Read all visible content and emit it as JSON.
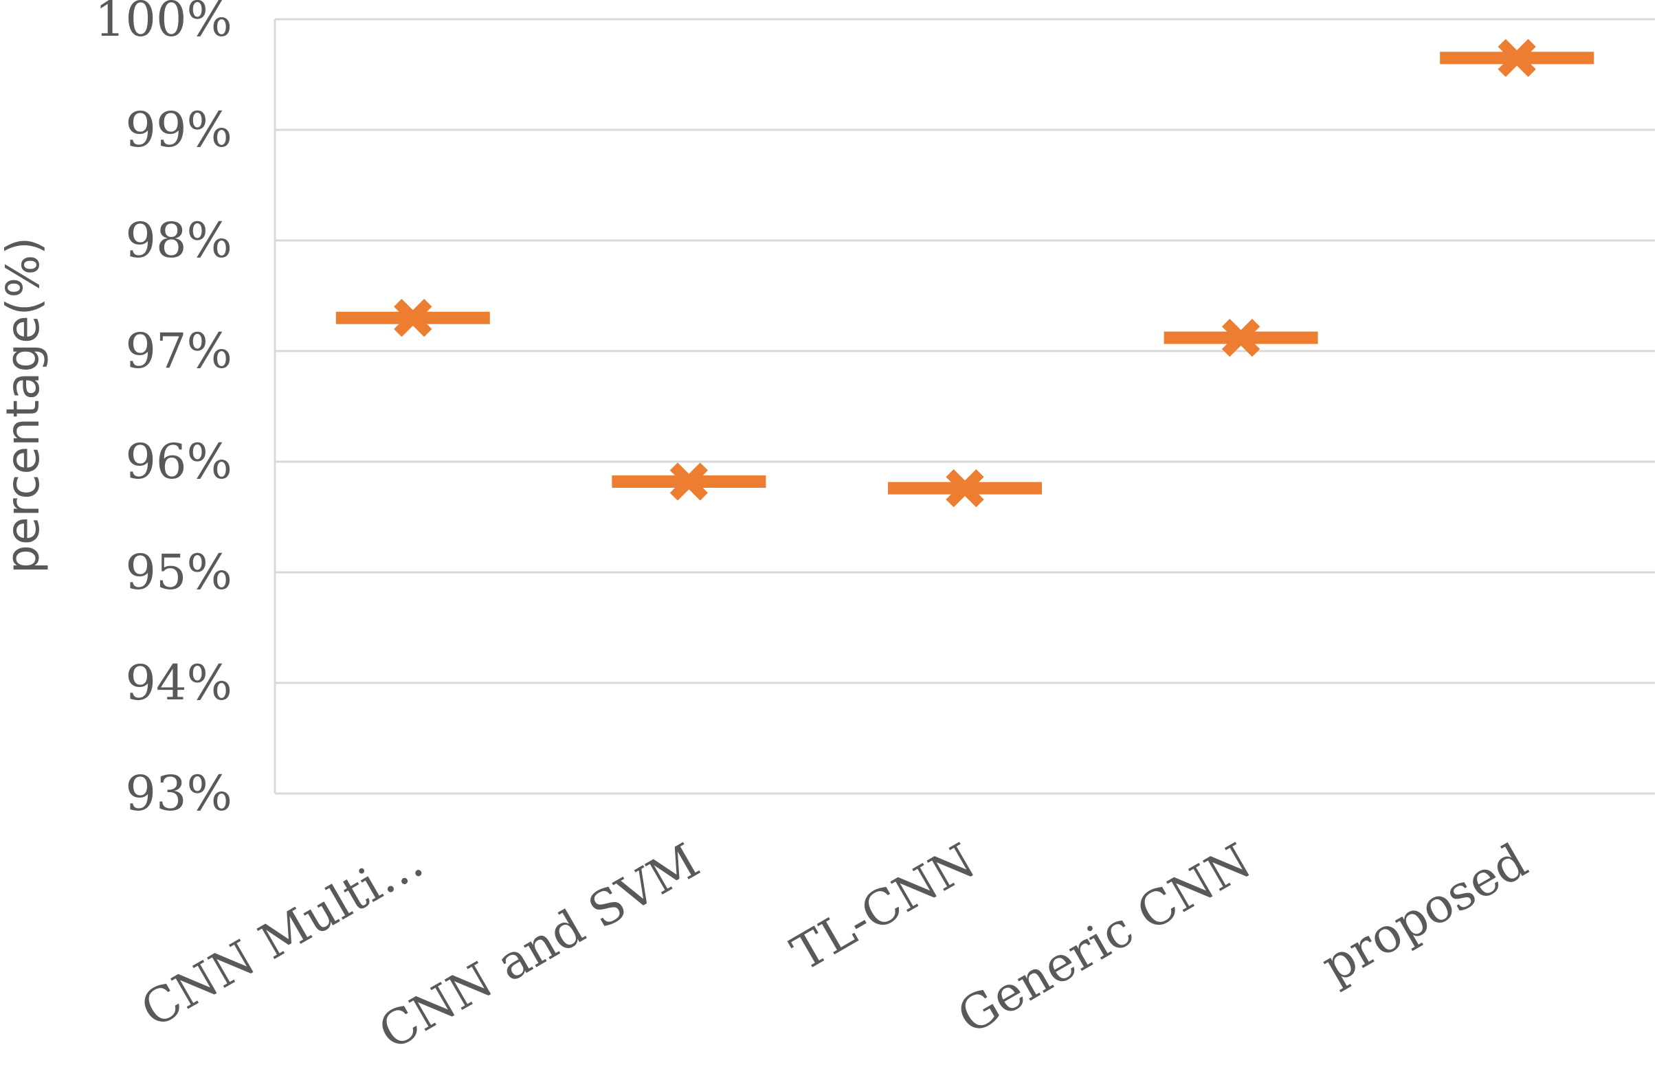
{
  "chart_data": {
    "type": "scatter",
    "title": "",
    "xlabel": "",
    "ylabel": "percentage(%)",
    "categories": [
      "CNN Multi…",
      "CNN and SVM",
      "TL-CNN",
      "Generic CNN",
      "proposed"
    ],
    "values": [
      97.3,
      95.82,
      95.76,
      97.12,
      99.65
    ],
    "ylim": [
      93,
      100
    ],
    "yticks": [
      93,
      94,
      95,
      96,
      97,
      98,
      99,
      100
    ],
    "ytick_labels": [
      "93%",
      "94%",
      "95%",
      "96%",
      "97%",
      "98%",
      "99%",
      "100%"
    ],
    "grid": true,
    "legend": "none",
    "marker": "x with horizontal dash",
    "colors": {
      "series": "#ED7D31",
      "grid": "#D9D9D9",
      "text": "#595959"
    }
  }
}
